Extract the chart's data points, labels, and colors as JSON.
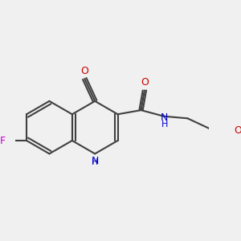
{
  "bg_color": "#f0f0f0",
  "bond_color": "#404040",
  "atom_colors": {
    "F": "#cc00cc",
    "O": "#cc0000",
    "N": "#0000cc",
    "H": "#0000cc"
  },
  "line_width": 1.5,
  "font_size": 9
}
